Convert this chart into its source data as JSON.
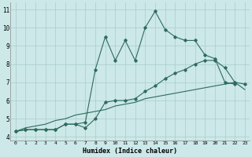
{
  "xlabel": "Humidex (Indice chaleur)",
  "x": [
    0,
    1,
    2,
    3,
    4,
    5,
    6,
    7,
    8,
    9,
    10,
    11,
    12,
    13,
    14,
    15,
    16,
    17,
    18,
    19,
    20,
    21,
    22,
    23
  ],
  "line1": [
    4.3,
    4.4,
    4.4,
    4.4,
    4.4,
    4.7,
    4.7,
    4.8,
    7.7,
    9.5,
    8.2,
    9.3,
    8.2,
    10.0,
    10.9,
    9.9,
    9.5,
    9.3,
    9.3,
    8.5,
    8.3,
    7.0,
    6.9,
    null
  ],
  "line2": [
    4.3,
    4.4,
    4.4,
    4.4,
    4.4,
    4.7,
    4.7,
    4.5,
    5.0,
    5.9,
    6.0,
    6.0,
    6.1,
    6.5,
    6.8,
    7.2,
    7.5,
    7.7,
    8.0,
    8.2,
    8.2,
    7.8,
    7.0,
    6.9
  ],
  "line3": [
    4.3,
    4.5,
    4.6,
    4.7,
    4.9,
    5.0,
    5.2,
    5.3,
    5.4,
    5.5,
    5.7,
    5.8,
    5.9,
    6.1,
    6.2,
    6.3,
    6.4,
    6.5,
    6.6,
    6.7,
    6.8,
    6.9,
    7.0,
    6.6
  ],
  "line_color": "#2e6b5e",
  "bg_color": "#cce8e8",
  "grid_color": "#aacccc",
  "ylim": [
    3.8,
    11.4
  ],
  "yticks": [
    4,
    5,
    6,
    7,
    8,
    9,
    10,
    11
  ],
  "xlim": [
    -0.5,
    23.5
  ]
}
